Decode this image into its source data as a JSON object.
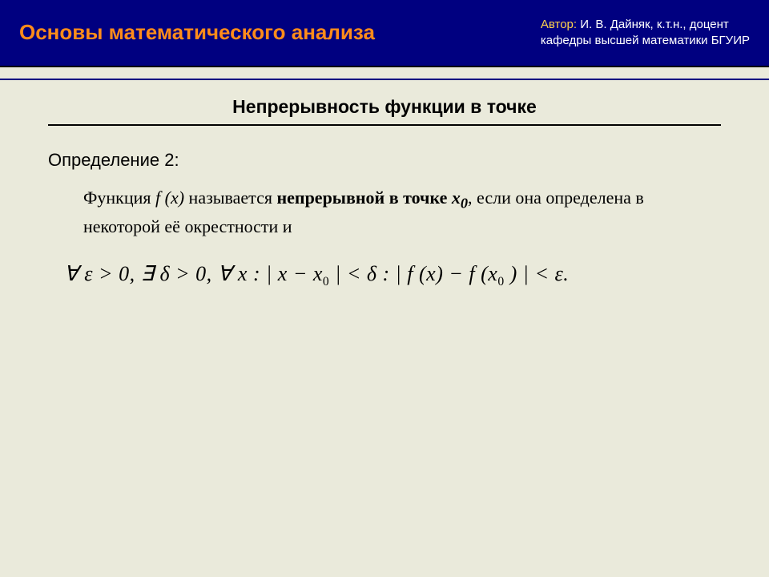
{
  "header": {
    "title": "Основы математического анализа",
    "author_label": "Автор:",
    "author_name": "И. В. Дайняк, к.т.н., доцент",
    "author_affiliation": "кафедры высшей математики БГУИР"
  },
  "section": {
    "title": "Непрерывность функции в точке",
    "definition_label": "Определение 2:",
    "body_part1": "Функция ",
    "body_fx": "f (x)",
    "body_part2": "  называется ",
    "body_bold": "непрерывной в точке ",
    "body_x0": "x",
    "body_x0_sub": "0",
    "body_part3": ", если она определена в некоторой её окрестности и",
    "formula_pieces": {
      "p1": "∀ ε > 0,",
      "gap1": "    ",
      "p2": "∃ δ > 0,",
      "gap2": "     ",
      "p3": "∀ x : | x − x",
      "p3sub": "0",
      "p4": " | < δ :    | f (x) − f (x",
      "p4sub": "0",
      "p5": " ) | < ε."
    }
  },
  "style": {
    "bg_color": "#eaeadb",
    "header_bg": "#000080",
    "title_color": "#ff8c1a",
    "author_label_color": "#ffd24d",
    "author_text_color": "#ffffff",
    "rule_color": "#000000"
  }
}
